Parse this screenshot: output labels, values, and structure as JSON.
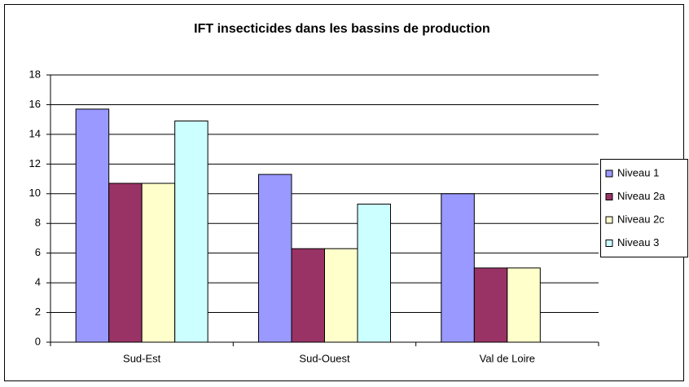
{
  "chart_data": {
    "type": "bar",
    "title": "IFT insecticides dans les bassins de production",
    "categories": [
      "Sud-Est",
      "Sud-Ouest",
      "Val de Loire"
    ],
    "series": [
      {
        "name": "Niveau 1",
        "color": "#9999ff",
        "values": [
          15.7,
          11.3,
          10.0
        ]
      },
      {
        "name": "Niveau 2a",
        "color": "#993366",
        "values": [
          10.7,
          6.3,
          5.0
        ]
      },
      {
        "name": "Niveau 2c",
        "color": "#ffffcc",
        "values": [
          10.7,
          6.3,
          5.0
        ]
      },
      {
        "name": "Niveau 3",
        "color": "#ccffff",
        "values": [
          14.9,
          9.3,
          null
        ]
      }
    ],
    "ylim": [
      0,
      18
    ],
    "yticks": [
      0,
      2,
      4,
      6,
      8,
      10,
      12,
      14,
      16,
      18
    ],
    "grid": true,
    "legend": "right"
  }
}
